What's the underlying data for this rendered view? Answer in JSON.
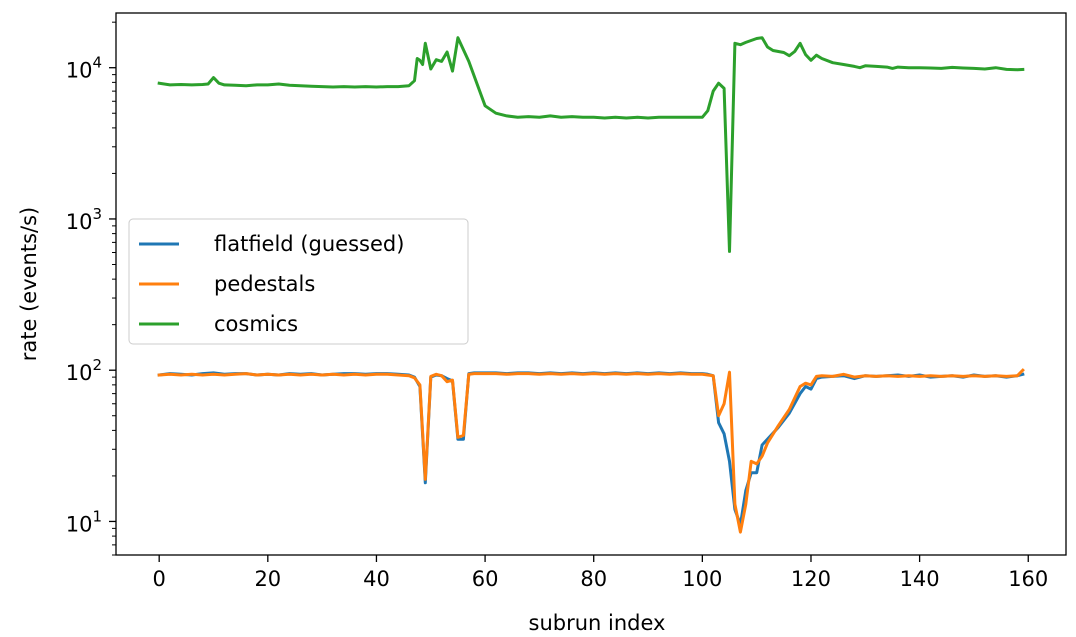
{
  "chart_data": {
    "type": "line",
    "title": "",
    "xlabel": "subrun index",
    "ylabel": "rate (events/s)",
    "yscale": "log",
    "xlim": [
      -7.95,
      166.95
    ],
    "ylim": [
      6,
      23000
    ],
    "grid": false,
    "legend_position": "center-left",
    "x_ticks": [
      0,
      20,
      40,
      60,
      80,
      100,
      120,
      140,
      160
    ],
    "x_tick_labels": [
      "0",
      "20",
      "40",
      "60",
      "80",
      "100",
      "120",
      "140",
      "160"
    ],
    "y_ticks": [
      10,
      100,
      1000,
      10000
    ],
    "y_tick_mantissa": [
      "10",
      "10",
      "10",
      "10"
    ],
    "y_tick_exponents": [
      "1",
      "2",
      "3",
      "4"
    ],
    "series": [
      {
        "name": "flatfield (guessed)",
        "color": "#1f77b4",
        "points": [
          [
            0,
            93
          ],
          [
            2,
            95
          ],
          [
            4,
            94
          ],
          [
            6,
            93
          ],
          [
            8,
            95
          ],
          [
            10,
            96
          ],
          [
            12,
            94
          ],
          [
            14,
            95
          ],
          [
            16,
            95
          ],
          [
            18,
            93
          ],
          [
            20,
            94
          ],
          [
            22,
            93
          ],
          [
            24,
            95
          ],
          [
            26,
            94
          ],
          [
            28,
            95
          ],
          [
            30,
            93
          ],
          [
            32,
            94
          ],
          [
            34,
            95
          ],
          [
            36,
            95
          ],
          [
            38,
            94
          ],
          [
            40,
            95
          ],
          [
            42,
            95
          ],
          [
            44,
            94
          ],
          [
            46,
            93
          ],
          [
            47,
            90
          ],
          [
            48,
            78
          ],
          [
            49,
            18
          ],
          [
            50,
            90
          ],
          [
            51,
            93
          ],
          [
            52,
            92
          ],
          [
            53,
            88
          ],
          [
            54,
            85
          ],
          [
            55,
            35
          ],
          [
            56,
            35
          ],
          [
            57,
            95
          ],
          [
            58,
            96
          ],
          [
            60,
            96
          ],
          [
            62,
            96
          ],
          [
            64,
            95
          ],
          [
            66,
            96
          ],
          [
            68,
            96
          ],
          [
            70,
            95
          ],
          [
            72,
            96
          ],
          [
            74,
            95
          ],
          [
            76,
            96
          ],
          [
            78,
            95
          ],
          [
            80,
            96
          ],
          [
            82,
            95
          ],
          [
            84,
            96
          ],
          [
            86,
            95
          ],
          [
            88,
            96
          ],
          [
            90,
            95
          ],
          [
            92,
            96
          ],
          [
            94,
            95
          ],
          [
            96,
            96
          ],
          [
            98,
            95
          ],
          [
            100,
            95
          ],
          [
            101,
            94
          ],
          [
            102,
            92
          ],
          [
            103,
            45
          ],
          [
            104,
            38
          ],
          [
            105,
            25
          ],
          [
            106,
            12
          ],
          [
            107,
            9.5
          ],
          [
            108,
            16
          ],
          [
            109,
            21
          ],
          [
            110,
            21
          ],
          [
            111,
            32
          ],
          [
            112,
            35
          ],
          [
            114,
            42
          ],
          [
            116,
            52
          ],
          [
            118,
            70
          ],
          [
            119,
            78
          ],
          [
            120,
            75
          ],
          [
            121,
            88
          ],
          [
            122,
            90
          ],
          [
            124,
            91
          ],
          [
            126,
            92
          ],
          [
            128,
            88
          ],
          [
            130,
            92
          ],
          [
            132,
            91
          ],
          [
            134,
            92
          ],
          [
            136,
            93
          ],
          [
            138,
            91
          ],
          [
            140,
            93
          ],
          [
            142,
            90
          ],
          [
            144,
            91
          ],
          [
            146,
            92
          ],
          [
            148,
            90
          ],
          [
            150,
            93
          ],
          [
            152,
            91
          ],
          [
            154,
            92
          ],
          [
            156,
            90
          ],
          [
            158,
            92
          ],
          [
            159,
            94
          ]
        ]
      },
      {
        "name": "pedestals",
        "color": "#ff7f0e",
        "points": [
          [
            0,
            93
          ],
          [
            2,
            94
          ],
          [
            4,
            93
          ],
          [
            6,
            94
          ],
          [
            8,
            93
          ],
          [
            10,
            94
          ],
          [
            12,
            93
          ],
          [
            14,
            94
          ],
          [
            16,
            95
          ],
          [
            18,
            93
          ],
          [
            20,
            94
          ],
          [
            22,
            93
          ],
          [
            24,
            94
          ],
          [
            26,
            93
          ],
          [
            28,
            94
          ],
          [
            30,
            93
          ],
          [
            32,
            94
          ],
          [
            34,
            93
          ],
          [
            36,
            94
          ],
          [
            38,
            93
          ],
          [
            40,
            94
          ],
          [
            42,
            94
          ],
          [
            44,
            93
          ],
          [
            46,
            92
          ],
          [
            47,
            89
          ],
          [
            48,
            80
          ],
          [
            49,
            19
          ],
          [
            50,
            91
          ],
          [
            51,
            94
          ],
          [
            52,
            92
          ],
          [
            53,
            84
          ],
          [
            54,
            86
          ],
          [
            55,
            36
          ],
          [
            56,
            37
          ],
          [
            57,
            94
          ],
          [
            58,
            95
          ],
          [
            60,
            95
          ],
          [
            62,
            95
          ],
          [
            64,
            94
          ],
          [
            66,
            95
          ],
          [
            68,
            95
          ],
          [
            70,
            94
          ],
          [
            72,
            95
          ],
          [
            74,
            94
          ],
          [
            76,
            95
          ],
          [
            78,
            94
          ],
          [
            80,
            95
          ],
          [
            82,
            94
          ],
          [
            84,
            95
          ],
          [
            86,
            94
          ],
          [
            88,
            95
          ],
          [
            90,
            94
          ],
          [
            92,
            95
          ],
          [
            94,
            94
          ],
          [
            96,
            95
          ],
          [
            98,
            94
          ],
          [
            100,
            94
          ],
          [
            101,
            93
          ],
          [
            102,
            92
          ],
          [
            103,
            50
          ],
          [
            104,
            60
          ],
          [
            105,
            97
          ],
          [
            106,
            13
          ],
          [
            107,
            8.5
          ],
          [
            108,
            13
          ],
          [
            109,
            25
          ],
          [
            110,
            24
          ],
          [
            111,
            27
          ],
          [
            112,
            33
          ],
          [
            114,
            43
          ],
          [
            116,
            55
          ],
          [
            118,
            78
          ],
          [
            119,
            82
          ],
          [
            120,
            80
          ],
          [
            121,
            91
          ],
          [
            122,
            92
          ],
          [
            124,
            91
          ],
          [
            126,
            94
          ],
          [
            128,
            90
          ],
          [
            130,
            92
          ],
          [
            132,
            91
          ],
          [
            134,
            92
          ],
          [
            136,
            91
          ],
          [
            138,
            92
          ],
          [
            140,
            91
          ],
          [
            142,
            92
          ],
          [
            144,
            91
          ],
          [
            146,
            92
          ],
          [
            148,
            91
          ],
          [
            150,
            92
          ],
          [
            152,
            91
          ],
          [
            154,
            92
          ],
          [
            156,
            91
          ],
          [
            158,
            92
          ],
          [
            159,
            100
          ]
        ]
      },
      {
        "name": "cosmics",
        "color": "#2ca02c",
        "points": [
          [
            0,
            7900
          ],
          [
            2,
            7700
          ],
          [
            4,
            7750
          ],
          [
            6,
            7700
          ],
          [
            8,
            7750
          ],
          [
            9,
            7800
          ],
          [
            10,
            8600
          ],
          [
            11,
            7900
          ],
          [
            12,
            7700
          ],
          [
            14,
            7650
          ],
          [
            16,
            7600
          ],
          [
            18,
            7700
          ],
          [
            20,
            7700
          ],
          [
            22,
            7800
          ],
          [
            24,
            7650
          ],
          [
            26,
            7600
          ],
          [
            28,
            7550
          ],
          [
            30,
            7500
          ],
          [
            32,
            7450
          ],
          [
            34,
            7500
          ],
          [
            36,
            7450
          ],
          [
            38,
            7500
          ],
          [
            40,
            7450
          ],
          [
            42,
            7500
          ],
          [
            44,
            7500
          ],
          [
            46,
            7600
          ],
          [
            47,
            8200
          ],
          [
            47.5,
            11500
          ],
          [
            48,
            11200
          ],
          [
            48.5,
            10500
          ],
          [
            49,
            14500
          ],
          [
            50,
            9800
          ],
          [
            51,
            11300
          ],
          [
            52,
            11000
          ],
          [
            53,
            12700
          ],
          [
            54,
            9500
          ],
          [
            55,
            15800
          ],
          [
            57,
            11000
          ],
          [
            59,
            7000
          ],
          [
            60,
            5600
          ],
          [
            62,
            5000
          ],
          [
            64,
            4800
          ],
          [
            66,
            4700
          ],
          [
            68,
            4750
          ],
          [
            70,
            4700
          ],
          [
            72,
            4800
          ],
          [
            74,
            4700
          ],
          [
            76,
            4750
          ],
          [
            78,
            4700
          ],
          [
            80,
            4700
          ],
          [
            82,
            4650
          ],
          [
            84,
            4700
          ],
          [
            86,
            4650
          ],
          [
            88,
            4700
          ],
          [
            90,
            4650
          ],
          [
            92,
            4700
          ],
          [
            94,
            4700
          ],
          [
            96,
            4700
          ],
          [
            98,
            4700
          ],
          [
            100,
            4700
          ],
          [
            101,
            5200
          ],
          [
            102,
            7000
          ],
          [
            103,
            7900
          ],
          [
            104,
            7300
          ],
          [
            105,
            610
          ],
          [
            106,
            14500
          ],
          [
            107,
            14200
          ],
          [
            108,
            14700
          ],
          [
            110,
            15600
          ],
          [
            111,
            15800
          ],
          [
            112,
            13700
          ],
          [
            113,
            13000
          ],
          [
            115,
            12600
          ],
          [
            116,
            12000
          ],
          [
            117,
            12800
          ],
          [
            118,
            14500
          ],
          [
            119,
            12200
          ],
          [
            120,
            11200
          ],
          [
            121,
            12100
          ],
          [
            122,
            11500
          ],
          [
            124,
            10800
          ],
          [
            126,
            10500
          ],
          [
            128,
            10200
          ],
          [
            129,
            10000
          ],
          [
            130,
            10300
          ],
          [
            132,
            10200
          ],
          [
            134,
            10100
          ],
          [
            135,
            9900
          ],
          [
            136,
            10100
          ],
          [
            138,
            10000
          ],
          [
            140,
            10000
          ],
          [
            142,
            9950
          ],
          [
            144,
            9900
          ],
          [
            146,
            10050
          ],
          [
            148,
            9950
          ],
          [
            150,
            9900
          ],
          [
            152,
            9800
          ],
          [
            154,
            10000
          ],
          [
            156,
            9750
          ],
          [
            158,
            9700
          ],
          [
            159,
            9750
          ]
        ]
      }
    ]
  }
}
